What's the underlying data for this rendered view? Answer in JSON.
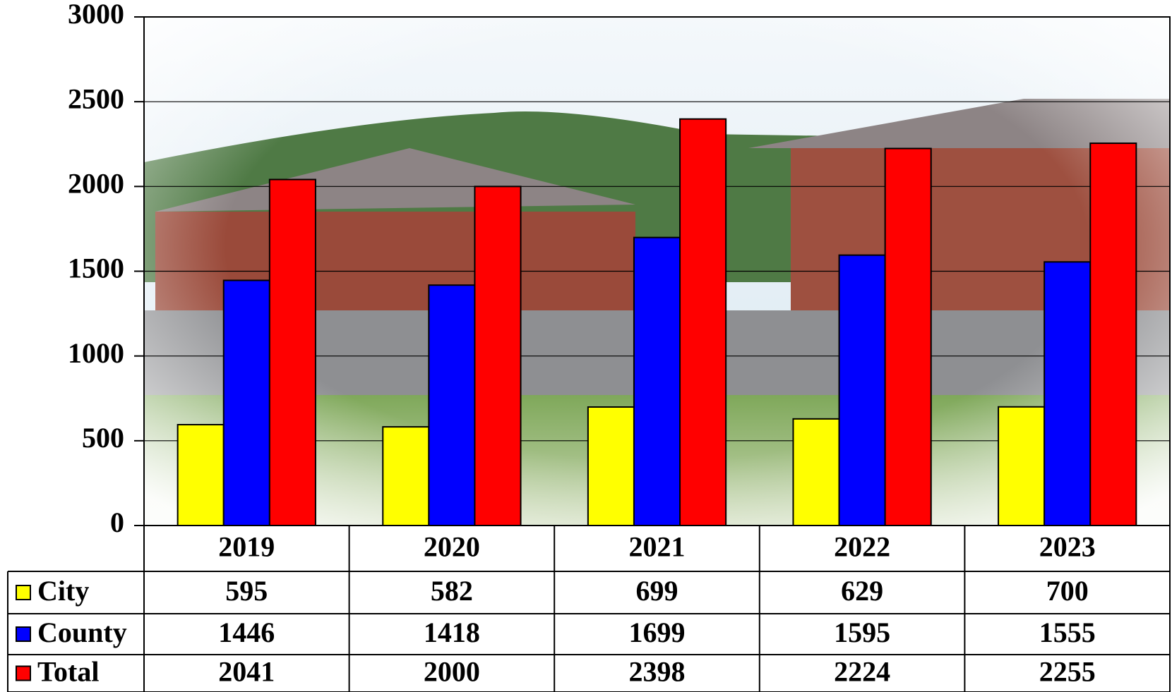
{
  "chart_data": {
    "type": "bar",
    "categories": [
      "2019",
      "2020",
      "2021",
      "2022",
      "2023"
    ],
    "series": [
      {
        "name": "City",
        "color": "#ffff00",
        "values": [
          595,
          582,
          699,
          629,
          700
        ]
      },
      {
        "name": "County",
        "color": "#0000ff",
        "values": [
          1446,
          1418,
          1699,
          1595,
          1555
        ]
      },
      {
        "name": "Total",
        "color": "#ff0000",
        "values": [
          2041,
          2000,
          2398,
          2224,
          2255
        ]
      }
    ],
    "ylim": [
      0,
      3000
    ],
    "yticks": [
      0,
      500,
      1000,
      1500,
      2000,
      2500,
      3000
    ],
    "grid": true,
    "data_table": true
  }
}
